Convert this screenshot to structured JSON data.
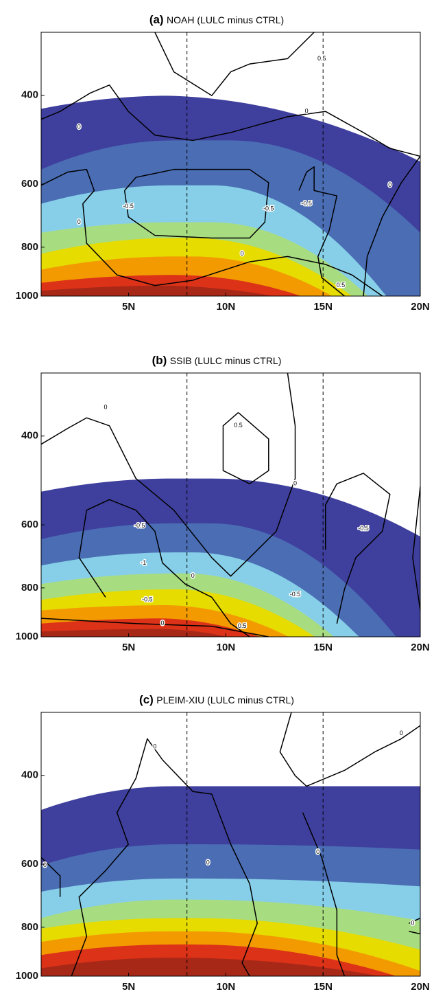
{
  "chart_data": [
    {
      "type": "contour",
      "panel_label": "(a)",
      "title": "NOAH (LULC minus CTRL)",
      "xlim": [
        0.5,
        20
      ],
      "xticks": [
        {
          "value": 5,
          "label": "5N"
        },
        {
          "value": 10,
          "label": "10N"
        },
        {
          "value": 15,
          "label": "15N"
        },
        {
          "value": 20,
          "label": "20N"
        }
      ],
      "ylim": [
        1000,
        300
      ],
      "yticks": [
        400,
        600,
        800,
        1000
      ],
      "ylog": true,
      "reference_lines": [
        8,
        15
      ],
      "fill_colors": [
        "#3f3f9e",
        "#4a6db4",
        "#87cfe8",
        "#a8dc80",
        "#e6dc00",
        "#f29a00",
        "#dc3218",
        "#a82818"
      ],
      "contour_labels": [
        "0.5",
        "0",
        "0",
        "-0.5",
        "-0.5",
        "0",
        "-0.5",
        "0",
        "0.5",
        "0"
      ]
    },
    {
      "type": "contour",
      "panel_label": "(b)",
      "title": "SSIB (LULC minus CTRL)",
      "xlim": [
        0.5,
        20
      ],
      "xticks": [
        {
          "value": 5,
          "label": "5N"
        },
        {
          "value": 10,
          "label": "10N"
        },
        {
          "value": 15,
          "label": "15N"
        },
        {
          "value": 20,
          "label": "20N"
        }
      ],
      "ylim": [
        1000,
        300
      ],
      "yticks": [
        400,
        600,
        800,
        1000
      ],
      "ylog": true,
      "reference_lines": [
        8,
        15
      ],
      "fill_colors": [
        "#3f3f9e",
        "#4a6db4",
        "#87cfe8",
        "#a8dc80",
        "#e6dc00",
        "#f29a00",
        "#dc3218",
        "#a82818"
      ],
      "contour_labels": [
        "0",
        "0.5",
        "0",
        "-0.5",
        "-0.5",
        "-1",
        "0",
        "-0.5",
        "0",
        "-0.5",
        "0.5"
      ]
    },
    {
      "type": "contour",
      "panel_label": "(c)",
      "title": "PLEIM-XIU (LULC minus CTRL)",
      "xlim": [
        0.5,
        20
      ],
      "xticks": [
        {
          "value": 5,
          "label": "5N"
        },
        {
          "value": 10,
          "label": "10N"
        },
        {
          "value": 15,
          "label": "15N"
        },
        {
          "value": 20,
          "label": "20N"
        }
      ],
      "ylim": [
        1000,
        300
      ],
      "yticks": [
        400,
        600,
        800,
        1000
      ],
      "ylog": true,
      "reference_lines": [
        8,
        15
      ],
      "fill_colors": [
        "#3f3f9e",
        "#4a6db4",
        "#87cfe8",
        "#a8dc80",
        "#e6dc00",
        "#f29a00",
        "#dc3218",
        "#a82818"
      ],
      "contour_labels": [
        "0",
        "0",
        "0",
        "0",
        "0",
        "0"
      ]
    }
  ]
}
